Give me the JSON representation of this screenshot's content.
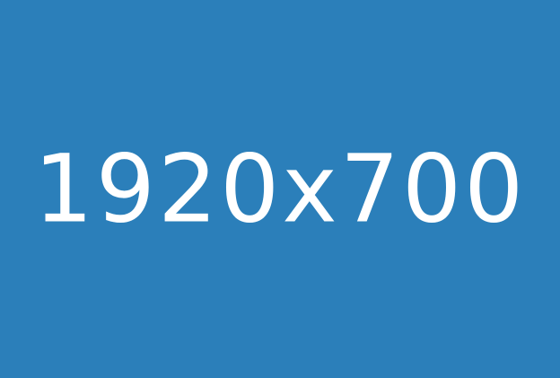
{
  "placeholder": {
    "label": "1920x700",
    "background_color": "#2b7fba",
    "text_color": "#ffffff"
  }
}
